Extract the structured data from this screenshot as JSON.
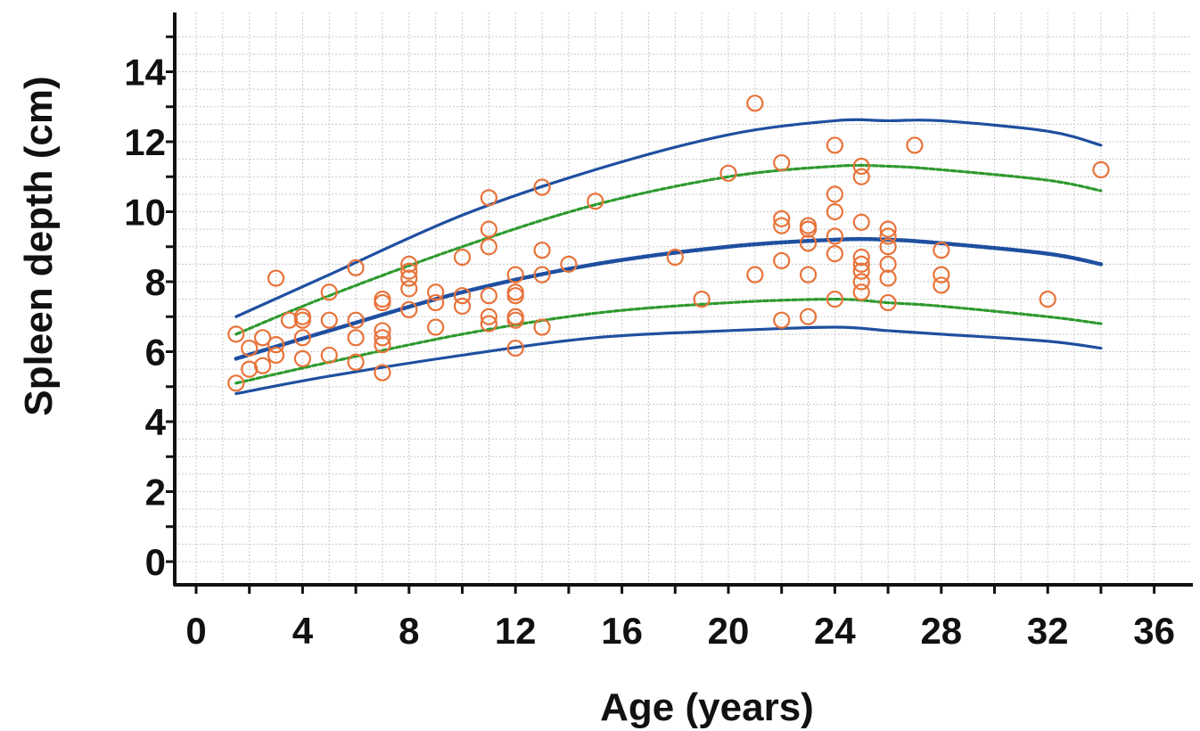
{
  "chart_data": {
    "type": "scatter",
    "xlabel": "Age (years)",
    "ylabel": "Spleen depth (cm)",
    "xlim": [
      0,
      36
    ],
    "ylim": [
      0,
      15
    ],
    "x_ticks": [
      0,
      4,
      8,
      12,
      16,
      20,
      24,
      28,
      32,
      36
    ],
    "y_ticks": [
      0,
      2,
      4,
      6,
      8,
      10,
      12,
      14
    ],
    "grid": true,
    "legend": "none",
    "colors": {
      "points": "#e8733a",
      "outer_lines": "#1f4fa0",
      "inner_lines": "#2e9a2e",
      "mean_line": "#1f4fa0",
      "axis": "#111111",
      "grid": "#c8c8c8"
    },
    "points": [
      [
        1.5,
        6.5
      ],
      [
        1.5,
        5.1
      ],
      [
        2,
        6.1
      ],
      [
        2,
        5.5
      ],
      [
        2.5,
        6.4
      ],
      [
        2.5,
        5.6
      ],
      [
        3,
        8.1
      ],
      [
        3,
        6.2
      ],
      [
        3,
        5.9
      ],
      [
        3.5,
        6.9
      ],
      [
        4,
        7.0
      ],
      [
        4,
        6.9
      ],
      [
        4,
        6.4
      ],
      [
        4,
        5.8
      ],
      [
        5,
        7.7
      ],
      [
        5,
        6.9
      ],
      [
        5,
        5.9
      ],
      [
        6,
        8.4
      ],
      [
        6,
        6.9
      ],
      [
        6,
        6.4
      ],
      [
        6,
        5.7
      ],
      [
        7,
        7.5
      ],
      [
        7,
        7.4
      ],
      [
        7,
        6.6
      ],
      [
        7,
        6.4
      ],
      [
        7,
        6.2
      ],
      [
        7,
        5.4
      ],
      [
        8,
        8.5
      ],
      [
        8,
        8.3
      ],
      [
        8,
        8.1
      ],
      [
        8,
        7.8
      ],
      [
        8,
        7.2
      ],
      [
        9,
        7.7
      ],
      [
        9,
        7.4
      ],
      [
        9,
        6.7
      ],
      [
        10,
        8.7
      ],
      [
        10,
        7.6
      ],
      [
        10,
        7.3
      ],
      [
        11,
        10.4
      ],
      [
        11,
        9.5
      ],
      [
        11,
        9.0
      ],
      [
        11,
        7.6
      ],
      [
        11,
        7.0
      ],
      [
        11,
        6.8
      ],
      [
        12,
        8.2
      ],
      [
        12,
        7.7
      ],
      [
        12,
        7.6
      ],
      [
        12,
        7.0
      ],
      [
        12,
        6.9
      ],
      [
        12,
        6.1
      ],
      [
        13,
        10.7
      ],
      [
        13,
        8.9
      ],
      [
        13,
        8.2
      ],
      [
        13,
        6.7
      ],
      [
        14,
        8.5
      ],
      [
        15,
        10.3
      ],
      [
        18,
        8.7
      ],
      [
        19,
        7.5
      ],
      [
        20,
        11.1
      ],
      [
        21,
        13.1
      ],
      [
        21,
        8.2
      ],
      [
        22,
        11.4
      ],
      [
        22,
        9.8
      ],
      [
        22,
        9.6
      ],
      [
        22,
        8.6
      ],
      [
        22,
        6.9
      ],
      [
        23,
        9.6
      ],
      [
        23,
        9.5
      ],
      [
        23,
        9.1
      ],
      [
        23,
        8.2
      ],
      [
        23,
        7.0
      ],
      [
        24,
        11.9
      ],
      [
        24,
        10.5
      ],
      [
        24,
        10.0
      ],
      [
        24,
        9.3
      ],
      [
        24,
        8.8
      ],
      [
        24,
        7.5
      ],
      [
        25,
        11.3
      ],
      [
        25,
        11.0
      ],
      [
        25,
        9.7
      ],
      [
        25,
        8.7
      ],
      [
        25,
        8.5
      ],
      [
        25,
        8.3
      ],
      [
        25,
        8.0
      ],
      [
        25,
        7.7
      ],
      [
        26,
        9.5
      ],
      [
        26,
        9.3
      ],
      [
        26,
        9.0
      ],
      [
        26,
        8.5
      ],
      [
        26,
        8.1
      ],
      [
        26,
        7.4
      ],
      [
        27,
        11.9
      ],
      [
        28,
        8.9
      ],
      [
        28,
        8.2
      ],
      [
        28,
        7.9
      ],
      [
        32,
        7.5
      ],
      [
        34,
        11.2
      ]
    ],
    "curves": [
      {
        "style": "solid-blue",
        "x": [
          1.5,
          5,
          10,
          15,
          20,
          24,
          26,
          28,
          32,
          34
        ],
        "y": [
          7.0,
          8.2,
          9.9,
          11.2,
          12.2,
          12.6,
          12.6,
          12.6,
          12.3,
          11.9
        ]
      },
      {
        "style": "dashed-green",
        "x": [
          1.5,
          5,
          10,
          15,
          20,
          24,
          26,
          28,
          32,
          34
        ],
        "y": [
          6.5,
          7.6,
          9.0,
          10.2,
          11.0,
          11.3,
          11.3,
          11.2,
          10.9,
          10.6
        ]
      },
      {
        "style": "dotted-blue",
        "x": [
          1.5,
          5,
          10,
          15,
          20,
          24,
          26,
          28,
          32,
          34
        ],
        "y": [
          5.8,
          6.6,
          7.7,
          8.5,
          9.0,
          9.2,
          9.2,
          9.1,
          8.8,
          8.5
        ]
      },
      {
        "style": "dashed-green",
        "x": [
          1.5,
          5,
          10,
          15,
          20,
          24,
          26,
          28,
          32,
          34
        ],
        "y": [
          5.1,
          5.7,
          6.5,
          7.1,
          7.4,
          7.5,
          7.4,
          7.3,
          7.0,
          6.8
        ]
      },
      {
        "style": "solid-blue",
        "x": [
          1.5,
          5,
          10,
          15,
          20,
          24,
          26,
          28,
          32,
          34
        ],
        "y": [
          4.8,
          5.3,
          5.9,
          6.4,
          6.6,
          6.7,
          6.6,
          6.5,
          6.3,
          6.1
        ]
      }
    ]
  }
}
